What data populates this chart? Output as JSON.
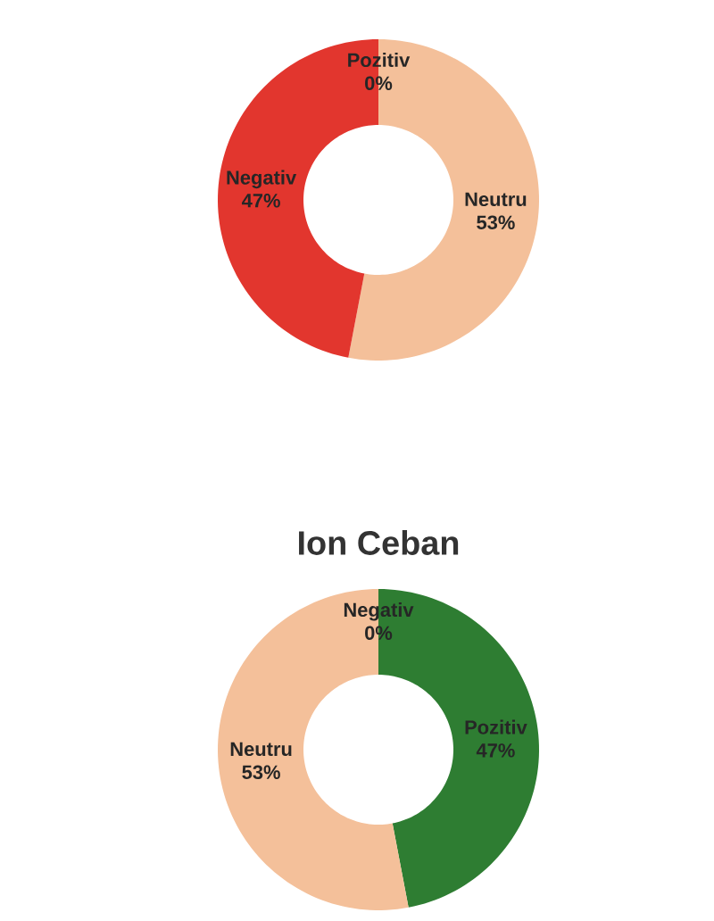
{
  "chart_data": [
    {
      "type": "donut",
      "categories": [
        "Pozitiv",
        "Neutru",
        "Negativ"
      ],
      "values": [
        0,
        53,
        47
      ],
      "colors": [
        "#2e7d32",
        "#f4c09a",
        "#e2362e"
      ],
      "value_labels": [
        "0%",
        "53%",
        "47%"
      ]
    },
    {
      "type": "donut",
      "title": "Ion Ceban",
      "categories": [
        "Negativ",
        "Pozitiv",
        "Neutru"
      ],
      "values": [
        0,
        47,
        53
      ],
      "colors": [
        "#e2362e",
        "#2e7d32",
        "#f4c09a"
      ],
      "value_labels": [
        "0%",
        "47%",
        "53%"
      ]
    }
  ]
}
